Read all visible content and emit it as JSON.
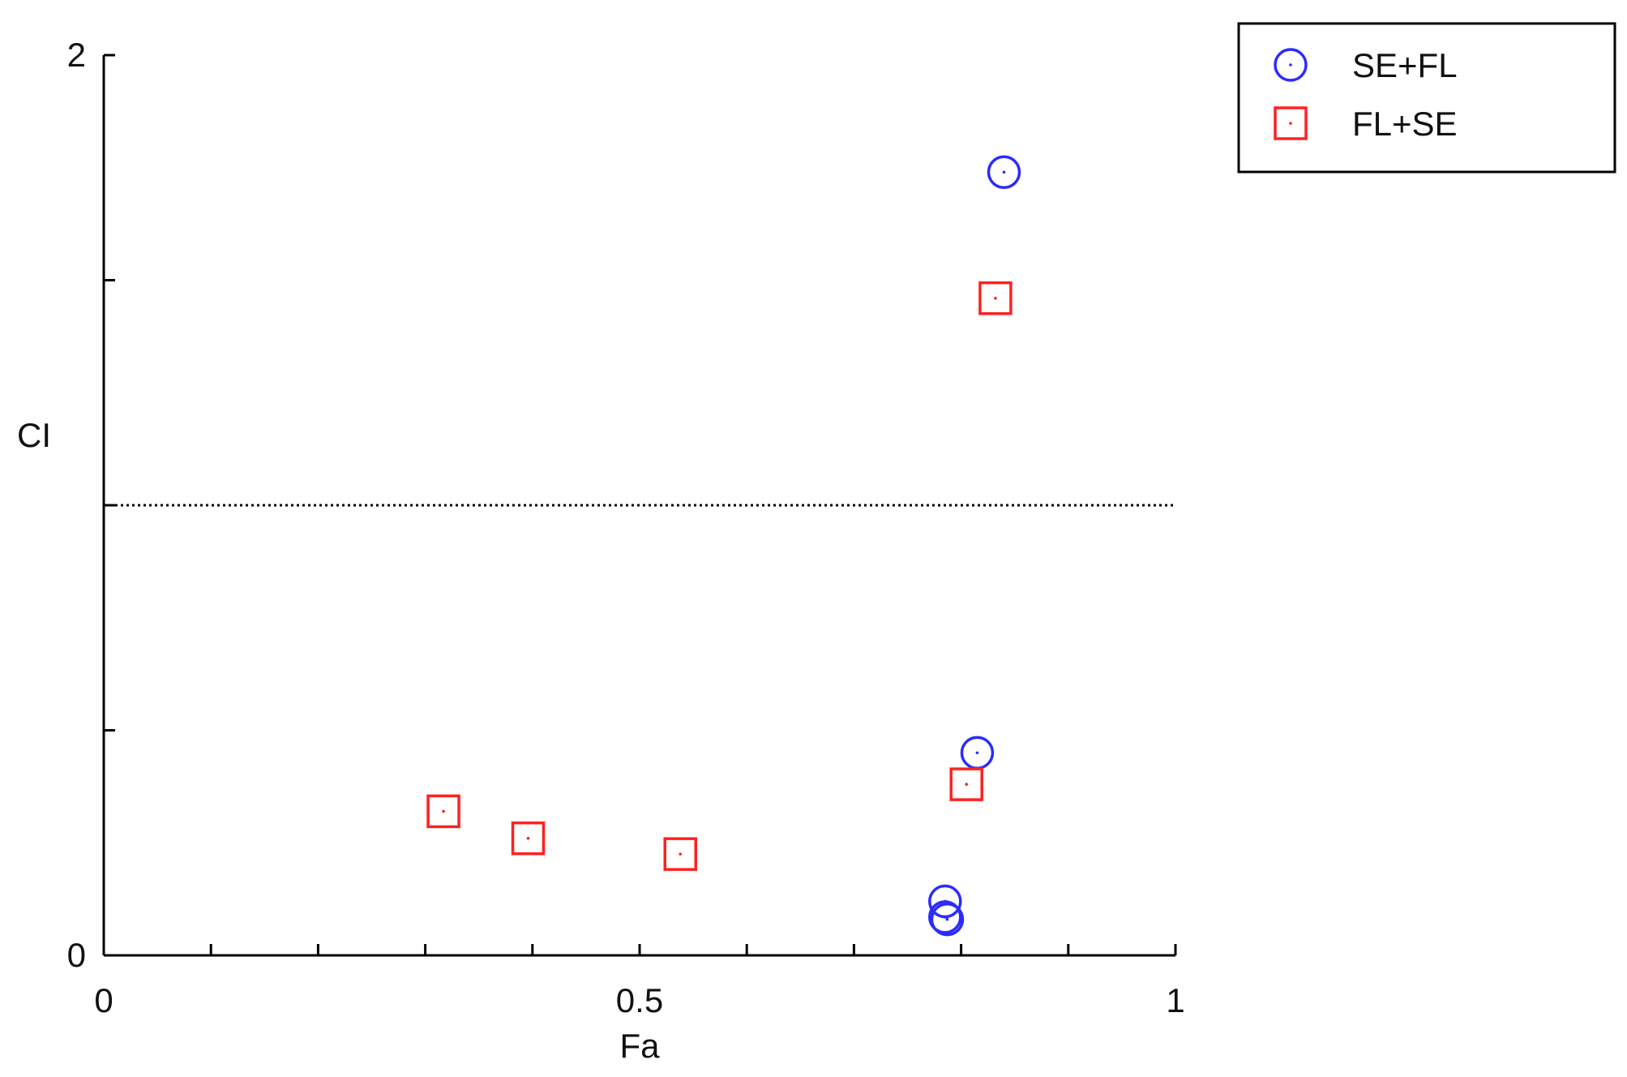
{
  "chart_data": {
    "type": "scatter",
    "title": "",
    "xlabel": "Fa",
    "ylabel": "CI",
    "xlim": [
      0,
      1
    ],
    "ylim": [
      0,
      2
    ],
    "x_ticks": [
      0,
      0.1,
      0.2,
      0.3,
      0.4,
      0.5,
      0.6,
      0.7,
      0.8,
      0.9,
      1
    ],
    "x_tick_labels": [
      {
        "value": 0,
        "label": "0"
      },
      {
        "value": 0.5,
        "label": "0.5"
      },
      {
        "value": 1,
        "label": "1"
      }
    ],
    "y_ticks": [
      0,
      0.5,
      1,
      1.5,
      2
    ],
    "y_tick_labels": [
      {
        "value": 0,
        "label": "0"
      },
      {
        "value": 2,
        "label": "2"
      }
    ],
    "reference_line": {
      "y": 1,
      "style": "dotted"
    },
    "grid": false,
    "legend_position": "outside-top-right",
    "series": [
      {
        "name": "SE+FL",
        "marker": "circle",
        "color": "#2b2bff",
        "points": [
          {
            "x": 0.84,
            "y": 1.74
          },
          {
            "x": 0.815,
            "y": 0.45
          },
          {
            "x": 0.785,
            "y": 0.12
          },
          {
            "x": 0.785,
            "y": 0.085
          },
          {
            "x": 0.787,
            "y": 0.08
          }
        ]
      },
      {
        "name": "FL+SE",
        "marker": "square",
        "color": "#ff2020",
        "points": [
          {
            "x": 0.832,
            "y": 1.46
          },
          {
            "x": 0.805,
            "y": 0.38
          },
          {
            "x": 0.317,
            "y": 0.32
          },
          {
            "x": 0.396,
            "y": 0.26
          },
          {
            "x": 0.538,
            "y": 0.225
          }
        ]
      }
    ]
  }
}
